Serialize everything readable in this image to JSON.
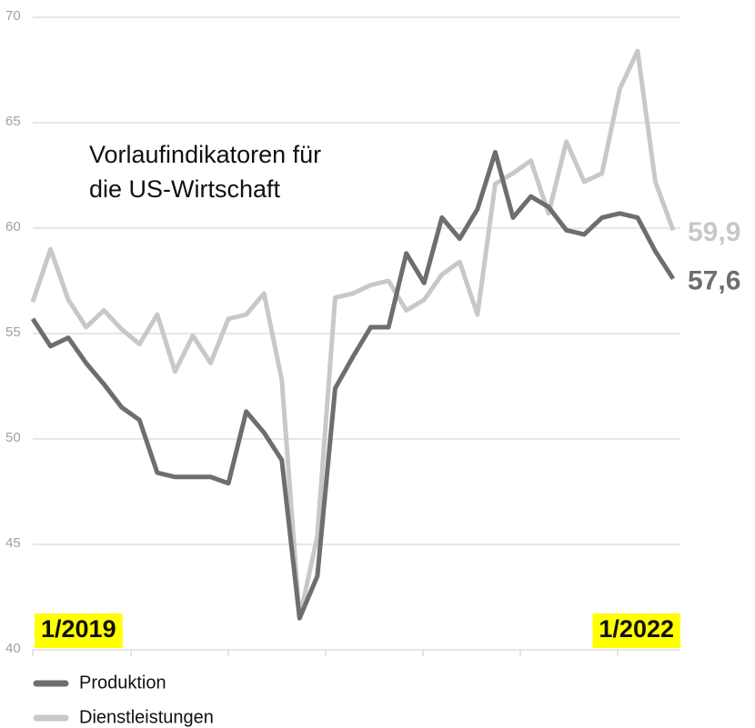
{
  "chart_data": {
    "type": "line",
    "title": "Vorlaufindikatoren für die US-Wirtschaft",
    "categories": [
      "1/2019",
      null,
      null,
      null,
      null,
      null,
      null,
      null,
      null,
      null,
      null,
      null,
      null,
      null,
      null,
      null,
      null,
      null,
      null,
      null,
      null,
      null,
      null,
      null,
      null,
      null,
      null,
      null,
      null,
      null,
      null,
      null,
      null,
      null,
      null,
      null,
      "1/2022"
    ],
    "series": [
      {
        "name": "Produktion",
        "color": "#6d6d72",
        "values": [
          55.7,
          54.4,
          54.8,
          53.6,
          52.6,
          51.5,
          50.9,
          48.4,
          48.2,
          48.2,
          48.2,
          47.9,
          51.3,
          50.3,
          49.0,
          41.5,
          43.5,
          52.4,
          53.9,
          55.3,
          55.3,
          58.8,
          57.4,
          60.5,
          59.5,
          60.9,
          63.6,
          60.5,
          61.5,
          61.0,
          59.9,
          59.7,
          60.5,
          60.7,
          60.5,
          58.9,
          57.6
        ],
        "value_labels": [
          null,
          null,
          null,
          null,
          null,
          null,
          null,
          null,
          null,
          null,
          null,
          null,
          null,
          null,
          null,
          null,
          null,
          null,
          null,
          null,
          null,
          null,
          null,
          null,
          null,
          null,
          null,
          null,
          null,
          null,
          null,
          null,
          null,
          null,
          null,
          null,
          "57,6"
        ]
      },
      {
        "name": "Dienstleistungen",
        "color": "#c8c8c8",
        "values": [
          56.5,
          59.0,
          56.6,
          55.3,
          56.1,
          55.2,
          54.5,
          55.9,
          53.2,
          54.9,
          53.6,
          55.7,
          55.9,
          56.9,
          52.8,
          41.5,
          45.4,
          56.7,
          56.9,
          57.3,
          57.5,
          56.1,
          56.6,
          57.8,
          58.4,
          55.9,
          62.1,
          62.6,
          63.2,
          60.7,
          64.1,
          62.2,
          62.6,
          66.6,
          68.4,
          62.2,
          59.9
        ],
        "value_labels": [
          null,
          null,
          null,
          null,
          null,
          null,
          null,
          null,
          null,
          null,
          null,
          null,
          null,
          null,
          null,
          null,
          null,
          null,
          null,
          null,
          null,
          null,
          null,
          null,
          null,
          null,
          null,
          null,
          null,
          null,
          null,
          null,
          null,
          null,
          null,
          null,
          "59,9"
        ]
      }
    ],
    "ylim": [
      40,
      70
    ],
    "yticks": [
      40,
      45,
      50,
      55,
      60,
      65,
      70
    ],
    "grid": true
  }
}
